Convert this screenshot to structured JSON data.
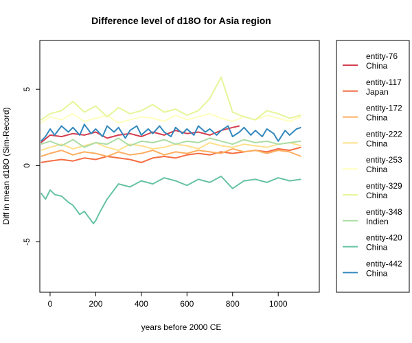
{
  "chart_data": {
    "type": "line",
    "title": "Difference level of d18O for Asia region",
    "xlabel": "years before 2000 CE",
    "ylabel": "Diff in mean d18O (Sim-Record)",
    "xlim": [
      -45,
      1180
    ],
    "ylim": [
      -8.3,
      8.2
    ],
    "xticks": [
      0,
      200,
      400,
      600,
      800,
      1000
    ],
    "yticks": [
      -5,
      0,
      5
    ],
    "grid": false,
    "legend_position": "right-outside",
    "series": [
      {
        "name": "entity-76",
        "region": "China",
        "color": "#d53e4f",
        "x": [
          -40,
          0,
          50,
          100,
          150,
          200,
          250,
          300,
          350,
          400,
          450,
          500,
          550,
          600,
          650,
          700,
          750,
          800,
          830
        ],
        "y": [
          1.5,
          2.0,
          1.9,
          2.1,
          2.0,
          2.2,
          1.8,
          2.0,
          2.1,
          1.9,
          2.2,
          2.0,
          2.3,
          2.1,
          2.2,
          2.0,
          2.3,
          2.5,
          2.6
        ]
      },
      {
        "name": "entity-117",
        "region": "Japan",
        "color": "#f46d43",
        "x": [
          -40,
          0,
          50,
          100,
          150,
          200,
          250,
          300,
          350,
          400,
          450,
          500,
          550,
          600,
          650,
          700,
          750,
          800,
          850,
          900,
          950,
          1000,
          1050,
          1100
        ],
        "y": [
          0.2,
          0.3,
          0.4,
          0.3,
          0.5,
          0.4,
          0.6,
          0.5,
          0.4,
          0.2,
          0.5,
          0.6,
          0.5,
          0.7,
          0.8,
          0.7,
          0.9,
          0.8,
          0.9,
          1.0,
          0.9,
          1.1,
          1.0,
          1.2
        ]
      },
      {
        "name": "entity-172",
        "region": "China",
        "color": "#fdae61",
        "x": [
          -40,
          0,
          50,
          100,
          150,
          200,
          250,
          300,
          350,
          400,
          450,
          500,
          550,
          600,
          650,
          700,
          750,
          800,
          850,
          900,
          950,
          1000,
          1050,
          1100
        ],
        "y": [
          0.6,
          0.8,
          1.0,
          0.7,
          0.9,
          0.8,
          0.6,
          0.9,
          0.7,
          0.8,
          1.0,
          0.7,
          0.9,
          0.8,
          1.0,
          0.9,
          0.8,
          1.1,
          0.9,
          1.0,
          0.8,
          1.0,
          0.9,
          0.6
        ]
      },
      {
        "name": "entity-222",
        "region": "China",
        "color": "#fee08b",
        "x": [
          -40,
          0,
          50,
          100,
          150,
          200,
          250,
          300,
          350,
          400,
          450,
          500,
          550,
          600,
          650,
          700,
          750,
          800,
          850,
          900,
          950,
          1000,
          1050,
          1100
        ],
        "y": [
          1.0,
          1.2,
          1.4,
          1.1,
          1.3,
          1.5,
          1.2,
          1.0,
          1.4,
          1.3,
          1.1,
          1.2,
          1.4,
          1.3,
          1.1,
          1.5,
          1.3,
          1.2,
          1.4,
          1.3,
          1.2,
          1.4,
          1.5,
          1.3
        ]
      },
      {
        "name": "entity-253",
        "region": "China",
        "color": "#ffffbf",
        "x": [
          -40,
          0,
          50,
          100,
          150,
          200,
          250,
          300,
          350,
          400,
          450,
          500,
          550,
          600,
          650,
          700,
          750,
          800,
          850,
          900,
          950,
          1000,
          1050,
          1100
        ],
        "y": [
          2.8,
          3.2,
          3.0,
          3.4,
          2.9,
          3.1,
          3.3,
          2.8,
          3.0,
          3.2,
          3.1,
          2.9,
          3.3,
          3.0,
          3.2,
          3.4,
          3.1,
          2.9,
          3.2,
          3.0,
          3.3,
          3.1,
          2.9,
          3.2
        ]
      },
      {
        "name": "entity-329",
        "region": "China",
        "color": "#e6f598",
        "x": [
          -40,
          0,
          50,
          100,
          150,
          200,
          250,
          300,
          350,
          400,
          450,
          500,
          550,
          600,
          650,
          700,
          750,
          800,
          850,
          900,
          950,
          1000,
          1050,
          1100
        ],
        "y": [
          3.0,
          3.4,
          3.6,
          4.2,
          3.5,
          3.9,
          3.2,
          3.8,
          3.4,
          3.6,
          4.0,
          3.5,
          3.7,
          3.3,
          3.6,
          4.4,
          5.8,
          3.5,
          3.2,
          3.0,
          3.6,
          3.4,
          3.1,
          3.3
        ]
      },
      {
        "name": "entity-348",
        "region": "Indien",
        "color": "#abdda4",
        "x": [
          -40,
          0,
          50,
          100,
          150,
          200,
          250,
          300,
          350,
          400,
          450,
          500,
          550,
          600,
          650,
          700,
          750,
          800,
          850,
          900,
          950,
          1000,
          1050,
          1100
        ],
        "y": [
          1.4,
          1.6,
          1.3,
          1.7,
          1.2,
          1.5,
          1.4,
          1.8,
          1.3,
          1.6,
          1.5,
          1.7,
          1.4,
          1.6,
          1.5,
          1.8,
          1.6,
          1.4,
          1.7,
          1.5,
          1.6,
          1.4,
          1.5,
          1.6
        ]
      },
      {
        "name": "entity-420",
        "region": "China",
        "color": "#66c2a5",
        "x": [
          -40,
          -20,
          0,
          20,
          50,
          80,
          100,
          130,
          150,
          170,
          190,
          200,
          220,
          250,
          280,
          300,
          350,
          400,
          450,
          500,
          550,
          600,
          650,
          700,
          750,
          800,
          850,
          900,
          950,
          1000,
          1050,
          1100
        ],
        "y": [
          -1.8,
          -2.2,
          -1.6,
          -1.9,
          -2.0,
          -2.4,
          -2.6,
          -3.2,
          -3.0,
          -3.4,
          -3.8,
          -3.6,
          -3.0,
          -2.2,
          -1.6,
          -1.2,
          -1.4,
          -1.0,
          -1.2,
          -0.8,
          -1.0,
          -1.3,
          -0.9,
          -1.1,
          -0.7,
          -1.5,
          -1.0,
          -0.9,
          -1.1,
          -0.8,
          -1.0,
          -0.9
        ]
      },
      {
        "name": "entity-442",
        "region": "China",
        "color": "#3288bd",
        "x": [
          -40,
          -20,
          0,
          20,
          50,
          80,
          100,
          130,
          150,
          180,
          200,
          230,
          250,
          280,
          300,
          330,
          350,
          380,
          400,
          430,
          450,
          480,
          500,
          530,
          550,
          580,
          600,
          630,
          650,
          680,
          700,
          730,
          750,
          780,
          800,
          830,
          850,
          880,
          900,
          930,
          950,
          980,
          1000,
          1030,
          1050,
          1080,
          1100
        ],
        "y": [
          1.6,
          1.9,
          2.4,
          2.0,
          2.6,
          2.2,
          2.5,
          2.0,
          2.7,
          2.1,
          2.4,
          1.9,
          2.6,
          2.2,
          2.5,
          1.8,
          2.3,
          2.6,
          2.0,
          2.4,
          2.1,
          2.6,
          2.2,
          1.9,
          2.5,
          2.1,
          2.4,
          2.0,
          2.6,
          2.2,
          2.4,
          2.0,
          2.3,
          2.6,
          1.9,
          2.2,
          2.5,
          2.0,
          2.3,
          1.9,
          2.4,
          2.1,
          1.6,
          2.3,
          2.0,
          2.4,
          2.5
        ]
      }
    ]
  }
}
